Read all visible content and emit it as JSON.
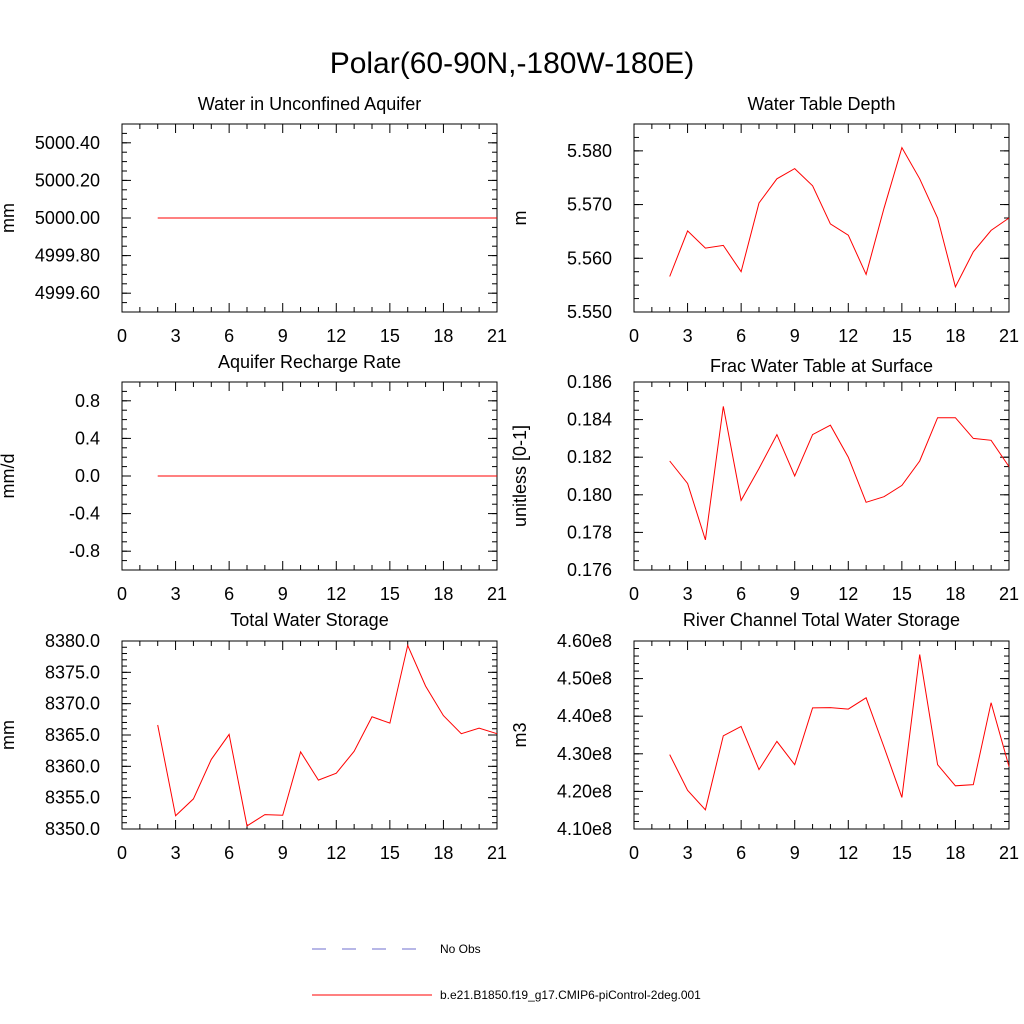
{
  "figure": {
    "title": "Polar(60-90N,-180W-180E)",
    "series_color": "#ff0000",
    "obs_color": "#6f6fcf"
  },
  "legend": {
    "items": [
      {
        "label": "No Obs",
        "style": "dashed",
        "color": "#6f6fcf"
      },
      {
        "label": "b.e21.B1850.f19_g17.CMIP6-piControl-2deg.001",
        "style": "solid",
        "color": "#ff0000"
      }
    ]
  },
  "chart_data": [
    {
      "type": "line",
      "title": "Water in Unconfined Aquifer",
      "ylabel": "mm",
      "xlabel": "",
      "xlim": [
        0,
        21
      ],
      "xticks": [
        0,
        3,
        6,
        9,
        12,
        15,
        18,
        21
      ],
      "xtick_labels": [
        "0",
        "3",
        "6",
        "9",
        "12",
        "15",
        "18",
        "21"
      ],
      "ylim": [
        4999.5,
        5000.5
      ],
      "yticks": [
        4999.6,
        4999.8,
        5000.0,
        5000.2,
        5000.4
      ],
      "ytick_labels": [
        "4999.60",
        "4999.80",
        "5000.00",
        "5000.20",
        "5000.40"
      ],
      "y_minor_step": 0.05,
      "series": [
        {
          "name": "b.e21.B1850.f19_g17.CMIP6-piControl-2deg.001",
          "x": [
            2,
            3,
            4,
            5,
            6,
            7,
            8,
            9,
            10,
            11,
            12,
            13,
            14,
            15,
            16,
            17,
            18,
            19,
            20,
            21
          ],
          "values": [
            5000,
            5000,
            5000,
            5000,
            5000,
            5000,
            5000,
            5000,
            5000,
            5000,
            5000,
            5000,
            5000,
            5000,
            5000,
            5000,
            5000,
            5000,
            5000,
            5000
          ]
        }
      ]
    },
    {
      "type": "line",
      "title": "Water Table Depth",
      "ylabel": "m",
      "xlabel": "",
      "xlim": [
        0,
        21
      ],
      "xticks": [
        0,
        3,
        6,
        9,
        12,
        15,
        18,
        21
      ],
      "xtick_labels": [
        "0",
        "3",
        "6",
        "9",
        "12",
        "15",
        "18",
        "21"
      ],
      "ylim": [
        5.55,
        5.585
      ],
      "yticks": [
        5.55,
        5.56,
        5.57,
        5.58
      ],
      "ytick_labels": [
        "5.550",
        "5.560",
        "5.570",
        "5.580"
      ],
      "y_minor_step": 0.0025,
      "series": [
        {
          "name": "b.e21.B1850.f19_g17.CMIP6-piControl-2deg.001",
          "x": [
            2,
            3,
            4,
            5,
            6,
            7,
            8,
            9,
            10,
            11,
            12,
            13,
            14,
            15,
            16,
            17,
            18,
            19,
            20,
            21
          ],
          "values": [
            5.5566,
            5.5651,
            5.5619,
            5.5624,
            5.5575,
            5.5703,
            5.5748,
            5.5767,
            5.5735,
            5.5664,
            5.5643,
            5.557,
            5.5693,
            5.5806,
            5.5748,
            5.5675,
            5.5547,
            5.5612,
            5.5652,
            5.5675
          ]
        }
      ]
    },
    {
      "type": "line",
      "title": "Aquifer Recharge Rate",
      "ylabel": "mm/d",
      "xlabel": "",
      "xlim": [
        0,
        21
      ],
      "xticks": [
        0,
        3,
        6,
        9,
        12,
        15,
        18,
        21
      ],
      "xtick_labels": [
        "0",
        "3",
        "6",
        "9",
        "12",
        "15",
        "18",
        "21"
      ],
      "ylim": [
        -1.0,
        1.0
      ],
      "yticks": [
        -0.8,
        -0.4,
        0.0,
        0.4,
        0.8
      ],
      "ytick_labels": [
        "-0.8",
        "-0.4",
        "0.0",
        "0.4",
        "0.8"
      ],
      "y_minor_step": 0.1,
      "series": [
        {
          "name": "b.e21.B1850.f19_g17.CMIP6-piControl-2deg.001",
          "x": [
            2,
            3,
            4,
            5,
            6,
            7,
            8,
            9,
            10,
            11,
            12,
            13,
            14,
            15,
            16,
            17,
            18,
            19,
            20,
            21
          ],
          "values": [
            0,
            0,
            0,
            0,
            0,
            0,
            0,
            0,
            0,
            0,
            0,
            0,
            0,
            0,
            0,
            0,
            0,
            0,
            0,
            0
          ]
        }
      ]
    },
    {
      "type": "line",
      "title": "Frac Water Table at Surface",
      "ylabel": "unitless [0-1]",
      "xlabel": "",
      "xlim": [
        0,
        21
      ],
      "xticks": [
        0,
        3,
        6,
        9,
        12,
        15,
        18,
        21
      ],
      "xtick_labels": [
        "0",
        "3",
        "6",
        "9",
        "12",
        "15",
        "18",
        "21"
      ],
      "ylim": [
        0.176,
        0.186
      ],
      "yticks": [
        0.176,
        0.178,
        0.18,
        0.182,
        0.184,
        0.186
      ],
      "ytick_labels": [
        "0.176",
        "0.178",
        "0.180",
        "0.182",
        "0.184",
        "0.186"
      ],
      "y_minor_step": 0.0005,
      "series": [
        {
          "name": "b.e21.B1850.f19_g17.CMIP6-piControl-2deg.001",
          "x": [
            2,
            3,
            4,
            5,
            6,
            7,
            8,
            9,
            10,
            11,
            12,
            13,
            14,
            15,
            16,
            17,
            18,
            19,
            20,
            21
          ],
          "values": [
            0.1818,
            0.1806,
            0.1776,
            0.1847,
            0.1797,
            0.1814,
            0.1832,
            0.181,
            0.1832,
            0.1837,
            0.182,
            0.1796,
            0.1799,
            0.1805,
            0.1818,
            0.1841,
            0.1841,
            0.183,
            0.1829,
            0.1815
          ]
        }
      ]
    },
    {
      "type": "line",
      "title": "Total Water Storage",
      "ylabel": "mm",
      "xlabel": "",
      "xlim": [
        0,
        21
      ],
      "xticks": [
        0,
        3,
        6,
        9,
        12,
        15,
        18,
        21
      ],
      "xtick_labels": [
        "0",
        "3",
        "6",
        "9",
        "12",
        "15",
        "18",
        "21"
      ],
      "ylim": [
        8350,
        8380
      ],
      "yticks": [
        8350,
        8355,
        8360,
        8365,
        8370,
        8375,
        8380
      ],
      "ytick_labels": [
        "8350.0",
        "8355.0",
        "8360.0",
        "8365.0",
        "8370.0",
        "8375.0",
        "8380.0"
      ],
      "y_minor_step": 1,
      "series": [
        {
          "name": "b.e21.B1850.f19_g17.CMIP6-piControl-2deg.001",
          "x": [
            2,
            3,
            4,
            5,
            6,
            7,
            8,
            9,
            10,
            11,
            12,
            13,
            14,
            15,
            16,
            17,
            18,
            19,
            20,
            21
          ],
          "values": [
            8366.6,
            8352.1,
            8354.8,
            8361.1,
            8365.1,
            8350.5,
            8352.3,
            8352.2,
            8362.3,
            8357.8,
            8358.9,
            8362.4,
            8367.9,
            8366.9,
            8379.3,
            8372.8,
            8368.1,
            8365.2,
            8366.1,
            8365.2
          ]
        }
      ]
    },
    {
      "type": "line",
      "title": "River Channel Total Water Storage",
      "ylabel": "m3",
      "xlabel": "",
      "xlim": [
        0,
        21
      ],
      "xticks": [
        0,
        3,
        6,
        9,
        12,
        15,
        18,
        21
      ],
      "xtick_labels": [
        "0",
        "3",
        "6",
        "9",
        "12",
        "15",
        "18",
        "21"
      ],
      "ylim": [
        410000000,
        460000000
      ],
      "yticks": [
        410000000,
        420000000,
        430000000,
        440000000,
        450000000,
        460000000
      ],
      "ytick_labels": [
        "4.10e8",
        "4.20e8",
        "4.30e8",
        "4.40e8",
        "4.50e8",
        "4.60e8"
      ],
      "y_minor_step": 2000000,
      "series": [
        {
          "name": "b.e21.B1850.f19_g17.CMIP6-piControl-2deg.001",
          "x": [
            2,
            3,
            4,
            5,
            6,
            7,
            8,
            9,
            10,
            11,
            12,
            13,
            14,
            15,
            16,
            17,
            18,
            19,
            20,
            21
          ],
          "values": [
            429800000,
            420300000,
            415100000,
            434800000,
            437300000,
            425800000,
            433300000,
            427100000,
            442200000,
            442300000,
            441900000,
            444900000,
            431800000,
            418400000,
            456400000,
            427100000,
            421500000,
            421800000,
            443600000,
            426600000
          ]
        }
      ]
    }
  ]
}
